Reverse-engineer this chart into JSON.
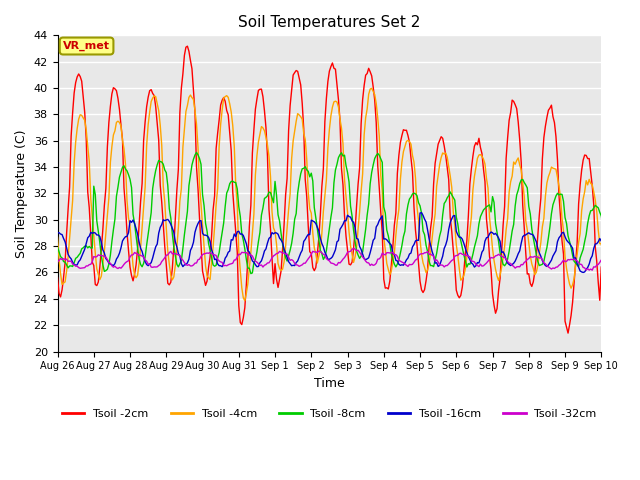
{
  "title": "Soil Temperatures Set 2",
  "xlabel": "Time",
  "ylabel": "Soil Temperature (C)",
  "ylim": [
    20,
    44
  ],
  "yticks": [
    20,
    22,
    24,
    26,
    28,
    30,
    32,
    34,
    36,
    38,
    40,
    42,
    44
  ],
  "annotation": "VR_met",
  "colors": {
    "Tsoil -2cm": "#FF0000",
    "Tsoil -4cm": "#FFA500",
    "Tsoil -8cm": "#00CC00",
    "Tsoil -16cm": "#0000CC",
    "Tsoil -32cm": "#CC00CC"
  },
  "bg_color": "#E8E8E8",
  "grid_color": "#FFFFFF",
  "legend_labels": [
    "Tsoil -2cm",
    "Tsoil -4cm",
    "Tsoil -8cm",
    "Tsoil -16cm",
    "Tsoil -32cm"
  ],
  "date_labels": [
    "Aug 26",
    "Aug 27",
    "Aug 28",
    "Aug 29",
    "Aug 30",
    "Aug 31",
    "Sep 1",
    "Sep 2",
    "Sep 3",
    "Sep 4",
    "Sep 5",
    "Sep 6",
    "Sep 7",
    "Sep 8",
    "Sep 9",
    "Sep 10"
  ]
}
